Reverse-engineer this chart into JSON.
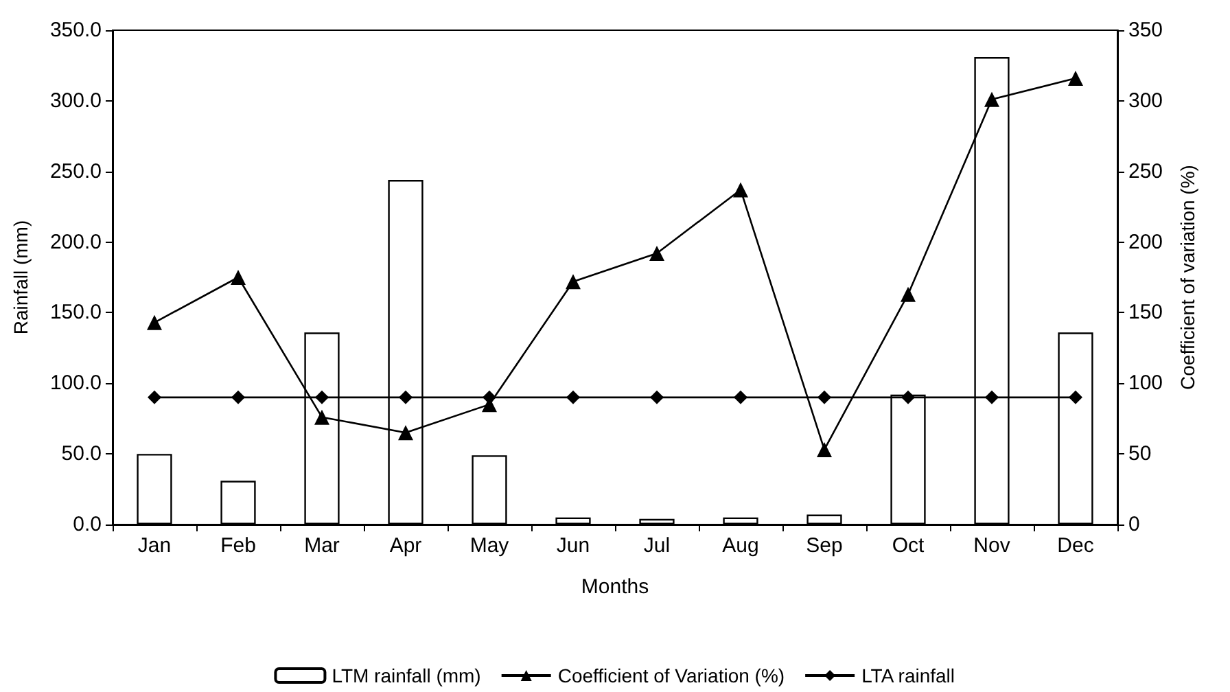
{
  "chart_data": {
    "type": "bar",
    "xlabel": "Months",
    "ylabel": "Rainfall (mm)",
    "y2label": "Coefficient of variation (%)",
    "categories": [
      "Jan",
      "Feb",
      "Mar",
      "Apr",
      "May",
      "Jun",
      "Jul",
      "Aug",
      "Sep",
      "Oct",
      "Nov",
      "Dec"
    ],
    "series": [
      {
        "name": "LTM rainfall (mm)",
        "color": "#ffffff",
        "values": [
          50,
          31,
          136,
          244,
          49,
          5,
          4,
          5,
          7,
          92,
          331,
          136
        ]
      },
      {
        "name": "Coefficient of Variation (%)",
        "type": "line",
        "axis": "y2",
        "marker": "triangle",
        "color": "#000000",
        "values": [
          143,
          175,
          76,
          65,
          85,
          172,
          192,
          237,
          53,
          163,
          301,
          316
        ]
      },
      {
        "name": "LTA rainfall",
        "type": "line",
        "marker": "diamond",
        "color": "#000000",
        "values": [
          90,
          90,
          90,
          90,
          90,
          90,
          90,
          90,
          90,
          90,
          90,
          90
        ]
      }
    ],
    "ylim": [
      0,
      350
    ],
    "yticks": [
      {
        "value": 0,
        "label": "0.0"
      },
      {
        "value": 50,
        "label": "50.0"
      },
      {
        "value": 100,
        "label": "100.0"
      },
      {
        "value": 150,
        "label": "150.0"
      },
      {
        "value": 200,
        "label": "200.0"
      },
      {
        "value": 250,
        "label": "250.0"
      },
      {
        "value": 300,
        "label": "300.0"
      },
      {
        "value": 350,
        "label": "350.0"
      }
    ],
    "y2lim": [
      0,
      350
    ],
    "y2ticks": [
      0,
      50,
      100,
      150,
      200,
      250,
      300,
      350
    ],
    "grid": false,
    "legend": "bottom",
    "line_style": "solid"
  }
}
